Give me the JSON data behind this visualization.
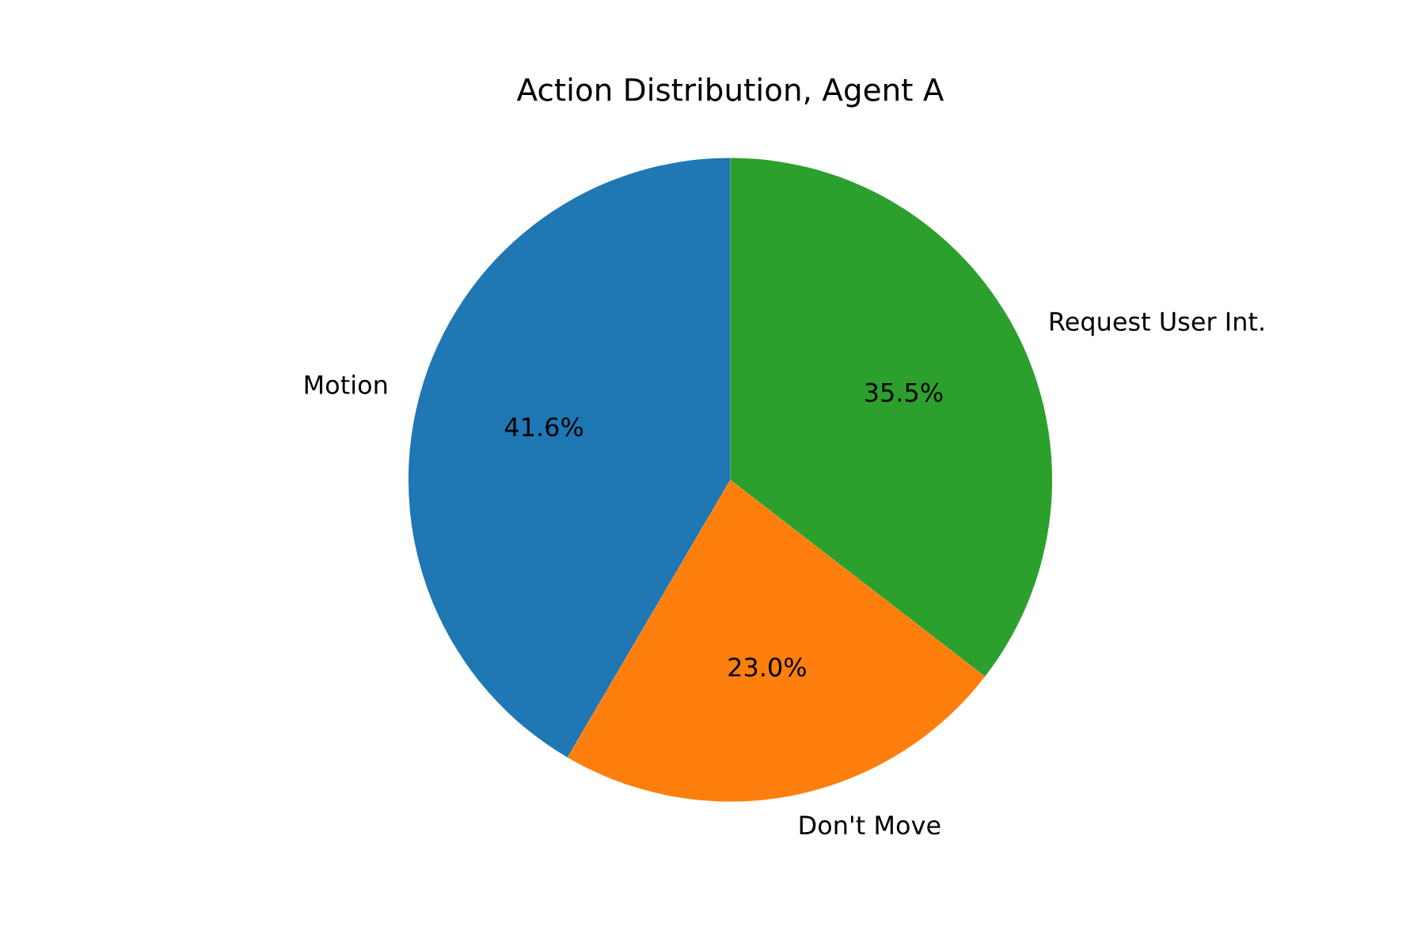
{
  "chart_data": {
    "type": "pie",
    "title": "Action Distribution, Agent A",
    "categories": [
      "Motion",
      "Don't Move",
      "Request User Int."
    ],
    "values": [
      41.6,
      23.0,
      35.5
    ],
    "colors": [
      "#1f77b4",
      "#ff7f0e",
      "#2ca02c"
    ],
    "value_labels": [
      "41.6%",
      "23.0%",
      "35.5%"
    ],
    "legend": false
  }
}
